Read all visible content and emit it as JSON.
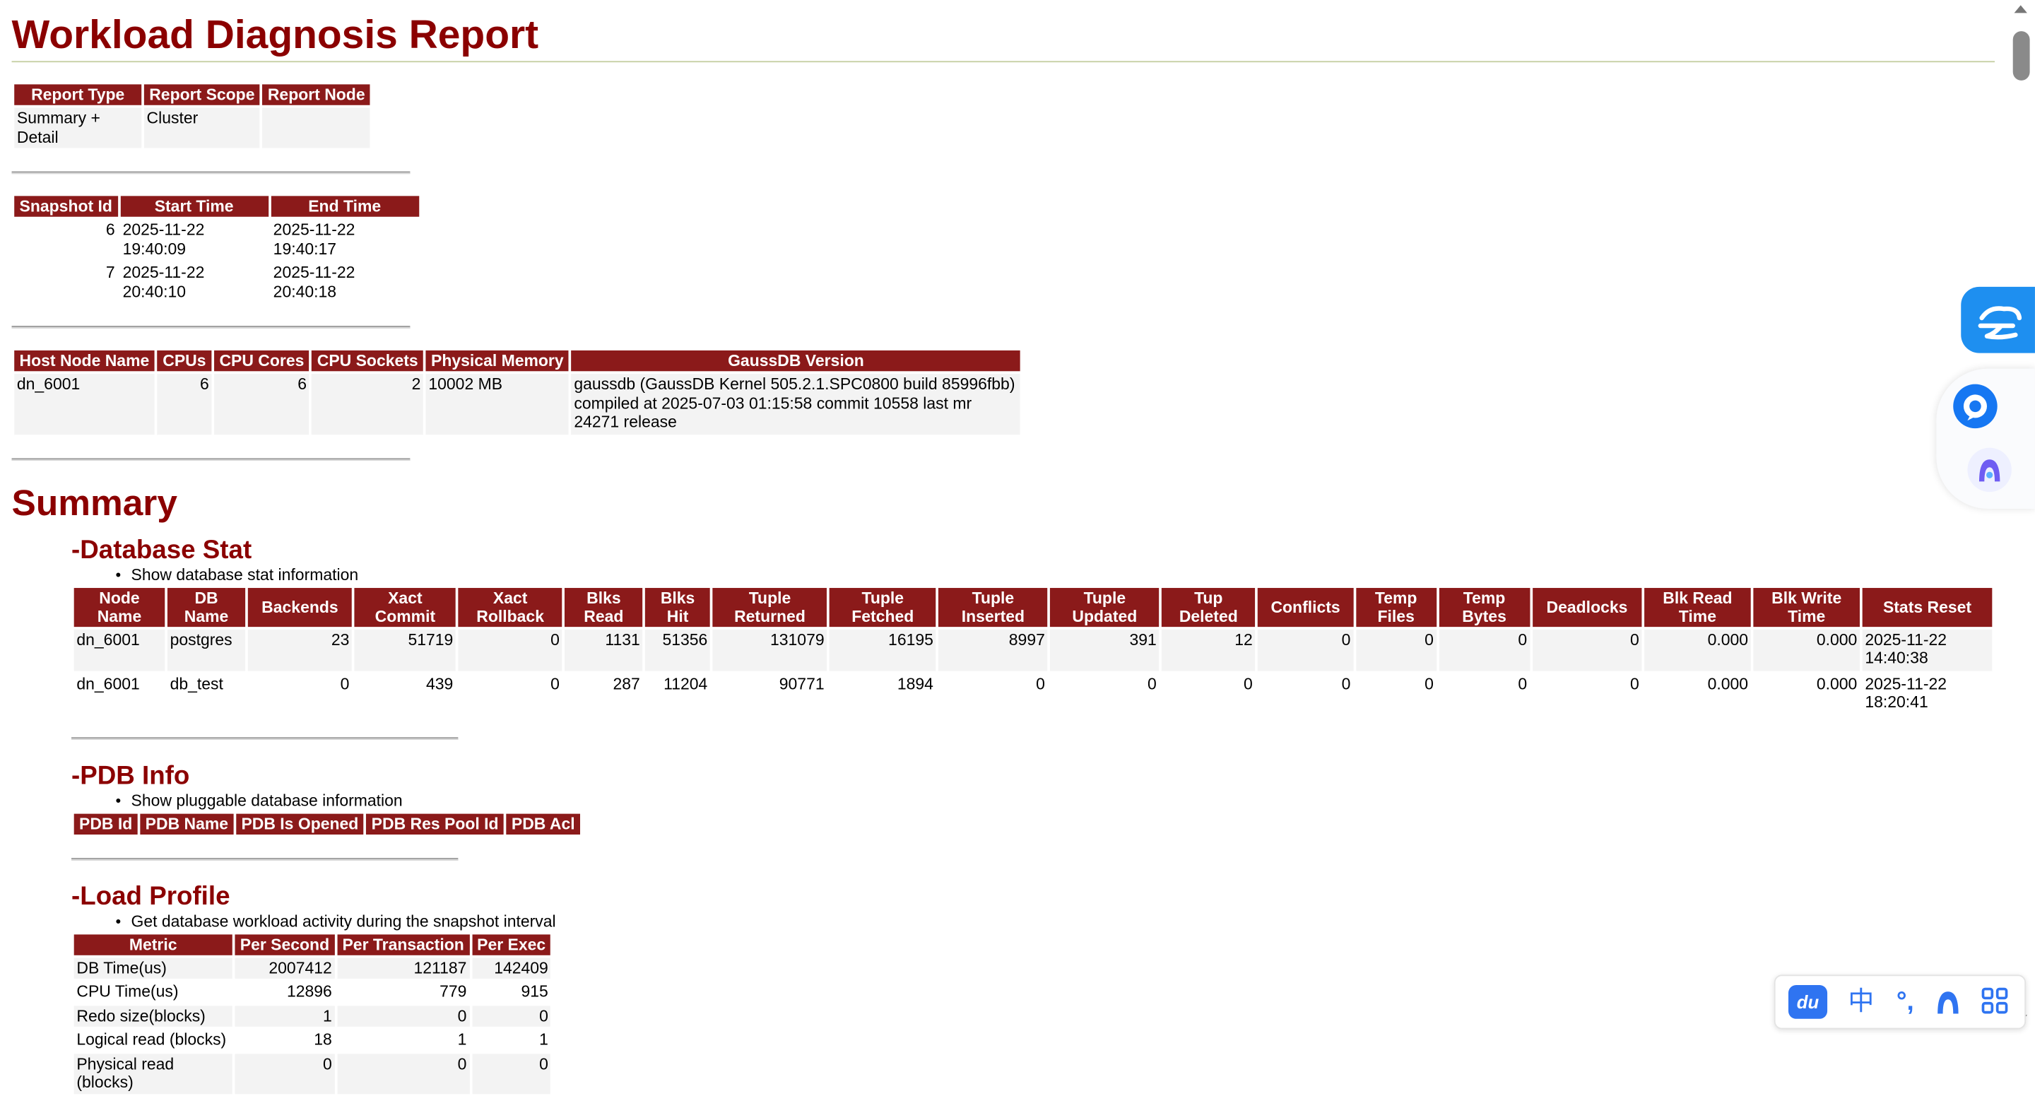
{
  "title": "Workload Diagnosis Report",
  "report_info": {
    "headers": [
      "Report Type",
      "Report Scope",
      "Report Node"
    ],
    "rows": [
      [
        "Summary + Detail",
        "Cluster",
        ""
      ]
    ]
  },
  "snapshots": {
    "headers": [
      "Snapshot Id",
      "Start Time",
      "End Time"
    ],
    "rows": [
      [
        "6",
        "2025-11-22 19:40:09",
        "2025-11-22 19:40:17"
      ],
      [
        "7",
        "2025-11-22 20:40:10",
        "2025-11-22 20:40:18"
      ]
    ]
  },
  "host": {
    "headers": [
      "Host Node Name",
      "CPUs",
      "CPU Cores",
      "CPU Sockets",
      "Physical Memory",
      "GaussDB Version"
    ],
    "rows": [
      [
        "dn_6001",
        "6",
        "6",
        "2",
        "10002 MB",
        "gaussdb (GaussDB Kernel 505.2.1.SPC0800 build 85996fbb) compiled at 2025-07-03 01:15:58 commit 10558 last mr 24271 release"
      ]
    ]
  },
  "summary": {
    "title": "Summary",
    "database_stat": {
      "title": "-Database Stat",
      "desc": "Show database stat information",
      "headers": [
        "Node Name",
        "DB Name",
        "Backends",
        "Xact Commit",
        "Xact Rollback",
        "Blks Read",
        "Blks Hit",
        "Tuple Returned",
        "Tuple Fetched",
        "Tuple Inserted",
        "Tuple Updated",
        "Tup Deleted",
        "Conflicts",
        "Temp Files",
        "Temp Bytes",
        "Deadlocks",
        "Blk Read Time",
        "Blk Write Time",
        "Stats Reset"
      ],
      "rows": [
        [
          "dn_6001",
          "postgres",
          "23",
          "51719",
          "0",
          "1131",
          "51356",
          "131079",
          "16195",
          "8997",
          "391",
          "12",
          "0",
          "0",
          "0",
          "0",
          "0.000",
          "0.000",
          "2025-11-22 14:40:38"
        ],
        [
          "dn_6001",
          "db_test",
          "0",
          "439",
          "0",
          "287",
          "11204",
          "90771",
          "1894",
          "0",
          "0",
          "0",
          "0",
          "0",
          "0",
          "0",
          "0.000",
          "0.000",
          "2025-11-22 18:20:41"
        ]
      ]
    },
    "pdb_info": {
      "title": "-PDB Info",
      "desc": "Show pluggable database information",
      "headers": [
        "PDB Id",
        "PDB Name",
        "PDB Is Opened",
        "PDB Res Pool Id",
        "PDB Acl"
      ]
    },
    "load_profile": {
      "title": "-Load Profile",
      "desc": "Get database workload activity during the snapshot interval",
      "headers": [
        "Metric",
        "Per Second",
        "Per Transaction",
        "Per Exec"
      ],
      "rows": [
        [
          "DB Time(us)",
          "2007412",
          "121187",
          "142409"
        ],
        [
          "CPU Time(us)",
          "12896",
          "779",
          "915"
        ],
        [
          "Redo size(blocks)",
          "1",
          "0",
          "0"
        ],
        [
          "Logical read (blocks)",
          "18",
          "1",
          "1"
        ],
        [
          "Physical read (blocks)",
          "0",
          "0",
          "0"
        ]
      ]
    }
  },
  "ime": {
    "logo": "du",
    "lang": "中",
    "punct": "°,"
  },
  "icons": {
    "cloud": "cloud-icon",
    "assistant": "assistant-icon",
    "a_logo": "a-logo-icon",
    "grid": "grid-icon"
  }
}
